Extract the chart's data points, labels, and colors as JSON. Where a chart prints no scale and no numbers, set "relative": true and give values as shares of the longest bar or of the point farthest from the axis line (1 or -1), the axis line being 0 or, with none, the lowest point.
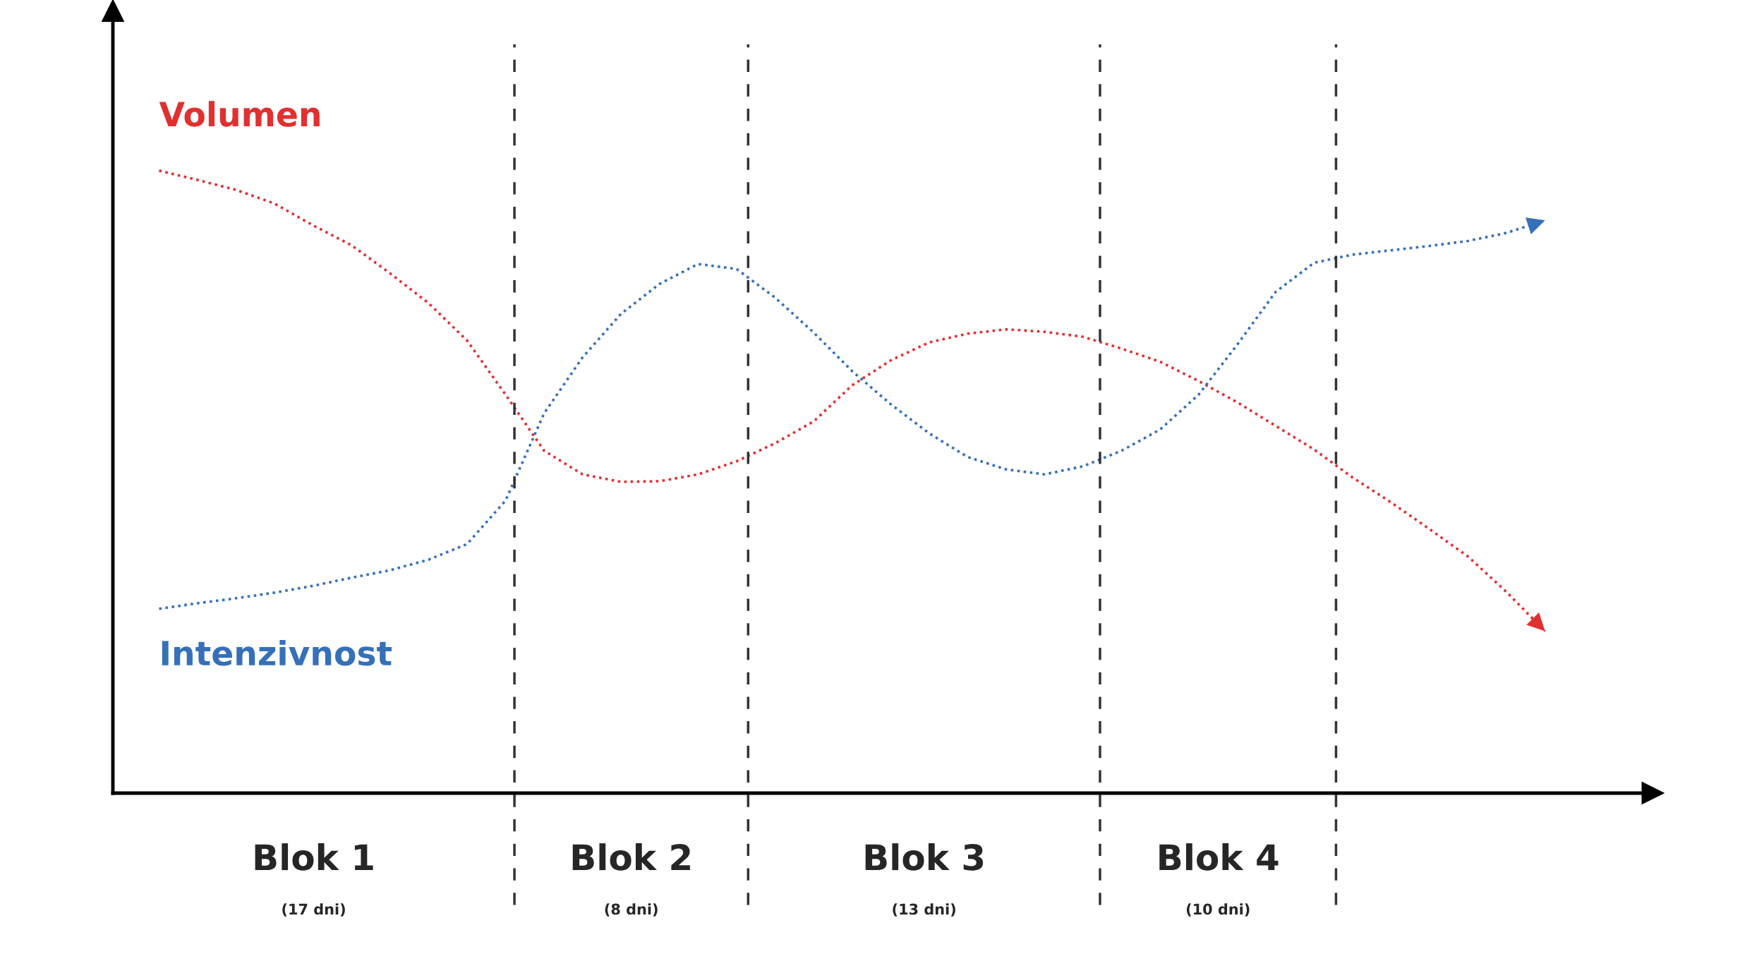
{
  "chart_data": {
    "type": "line",
    "relative": true,
    "legend": false,
    "line_style": "dotted",
    "marker": "none",
    "categories": [
      null,
      null,
      null,
      null,
      null,
      null,
      null,
      null,
      null,
      null,
      null,
      null,
      null,
      null,
      null,
      null,
      null,
      null,
      null,
      null,
      null,
      null,
      null,
      null,
      null,
      null,
      null,
      null,
      null,
      null,
      null,
      null,
      null,
      null,
      null,
      null,
      null
    ],
    "series": [
      {
        "name": "Volumen",
        "color": "#e03030",
        "values": [
          1.0,
          0.985,
          0.969,
          0.947,
          0.912,
          0.88,
          0.835,
          0.787,
          0.727,
          0.64,
          0.55,
          0.512,
          0.5,
          0.501,
          0.512,
          0.533,
          0.562,
          0.597,
          0.655,
          0.695,
          0.724,
          0.738,
          0.745,
          0.741,
          0.733,
          0.714,
          0.693,
          0.662,
          0.628,
          0.59,
          0.552,
          0.507,
          0.467,
          0.424,
          0.38,
          0.323,
          0.26
        ]
      },
      {
        "name": "Intenzivnost",
        "color": "#3570b8",
        "values": [
          0.296,
          0.305,
          0.313,
          0.322,
          0.333,
          0.346,
          0.358,
          0.375,
          0.4,
          0.47,
          0.61,
          0.7,
          0.77,
          0.818,
          0.85,
          0.842,
          0.796,
          0.74,
          0.678,
          0.625,
          0.578,
          0.54,
          0.52,
          0.512,
          0.525,
          0.55,
          0.584,
          0.64,
          0.72,
          0.805,
          0.852,
          0.865,
          0.872,
          0.879,
          0.887,
          0.9,
          0.92
        ]
      }
    ],
    "annotations": [
      "Blok 1",
      "(17 dni)",
      "Blok 2",
      "(8 dni)",
      "Blok 3",
      "(13 dni)",
      "Blok 4",
      "(10 dni)"
    ]
  }
}
